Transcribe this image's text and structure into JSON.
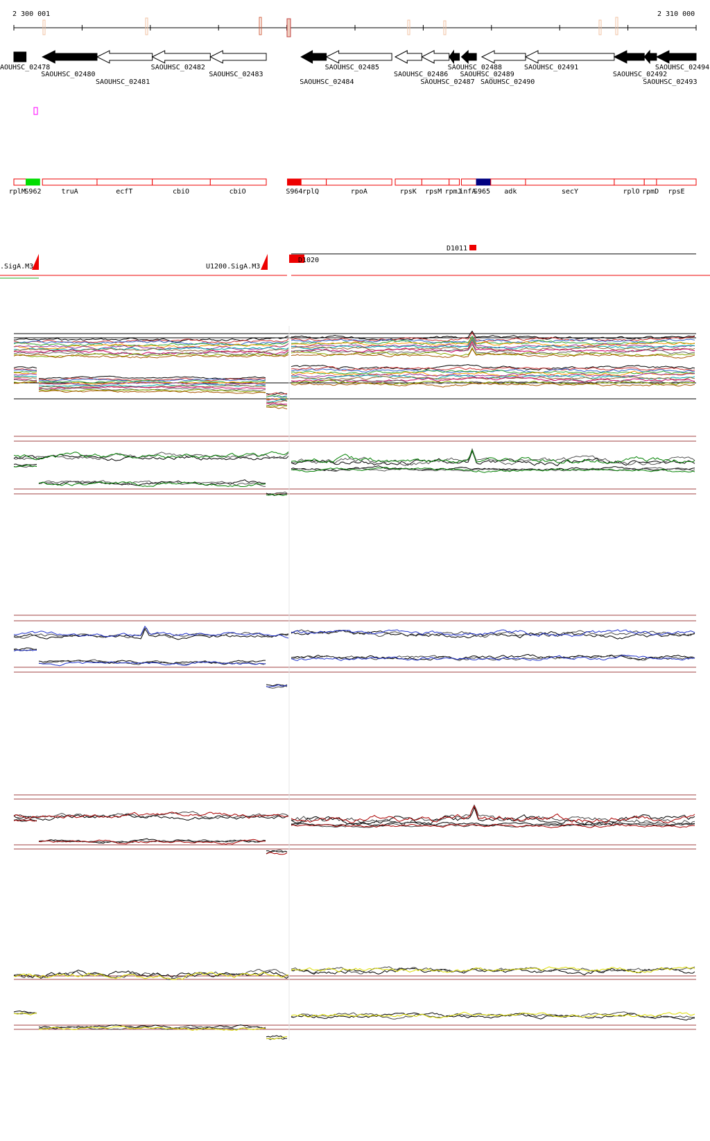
{
  "ruler": {
    "start_label": "2 300 001",
    "end_label": "2 310 000",
    "start_pos": 2300001,
    "end_pos": 2310000
  },
  "genes": [
    {
      "id": "SAOUHSC_02478",
      "label": "AOUHSC_02478",
      "start": 2300001,
      "end": 2300180,
      "strand": "-",
      "filled": true,
      "row": 0
    },
    {
      "id": "SAOUHSC_02480",
      "label": "SAOUHSC_02480",
      "start": 2300420,
      "end": 2301220,
      "strand": "-",
      "filled": true,
      "row": 1
    },
    {
      "id": "SAOUHSC_02481",
      "label": "SAOUHSC_02481",
      "start": 2301220,
      "end": 2302030,
      "strand": "-",
      "filled": false,
      "row": 2
    },
    {
      "id": "SAOUHSC_02482",
      "label": "SAOUHSC_02482",
      "start": 2302030,
      "end": 2302880,
      "strand": "-",
      "filled": false,
      "row": 0
    },
    {
      "id": "SAOUHSC_02483",
      "label": "SAOUHSC_02483",
      "start": 2302880,
      "end": 2303700,
      "strand": "-",
      "filled": false,
      "row": 1
    },
    {
      "id": "SAOUHSC_02484",
      "label": "SAOUHSC_02484",
      "start": 2304210,
      "end": 2304580,
      "strand": "-",
      "filled": true,
      "row": 2
    },
    {
      "id": "SAOUHSC_02485",
      "label": "SAOUHSC_02485",
      "start": 2304580,
      "end": 2305540,
      "strand": "-",
      "filled": false,
      "row": 0
    },
    {
      "id": "SAOUHSC_02486",
      "label": "SAOUHSC_02486",
      "start": 2305590,
      "end": 2305980,
      "strand": "-",
      "filled": false,
      "row": 1
    },
    {
      "id": "SAOUHSC_02487",
      "label": "SAOUHSC_02487",
      "start": 2305980,
      "end": 2306380,
      "strand": "-",
      "filled": false,
      "row": 2
    },
    {
      "id": "SAOUHSC_02488",
      "label": "SAOUHSC_02488",
      "start": 2306380,
      "end": 2306530,
      "strand": "-",
      "filled": true,
      "row": 0
    },
    {
      "id": "SAOUHSC_02489",
      "label": "SAOUHSC_02489",
      "start": 2306560,
      "end": 2306780,
      "strand": "-",
      "filled": true,
      "row": 1
    },
    {
      "id": "SAOUHSC_02490",
      "label": "SAOUHSC_02490",
      "start": 2306860,
      "end": 2307500,
      "strand": "-",
      "filled": false,
      "row": 2
    },
    {
      "id": "SAOUHSC_02491",
      "label": "SAOUHSC_02491",
      "start": 2307500,
      "end": 2308800,
      "strand": "-",
      "filled": false,
      "row": 0
    },
    {
      "id": "SAOUHSC_02492",
      "label": "SAOUHSC_02492",
      "start": 2308800,
      "end": 2309240,
      "strand": "-",
      "filled": true,
      "row": 1
    },
    {
      "id": "SAOUHSC_02493",
      "label": "SAOUHSC_02493",
      "start": 2309240,
      "end": 2309420,
      "strand": "-",
      "filled": true,
      "row": 2
    },
    {
      "id": "SAOUHSC_02494",
      "label": "SAOUHSC_02494",
      "start": 2309420,
      "end": 2310000,
      "strand": "-",
      "filled": true,
      "row": 0
    }
  ],
  "operons": [
    {
      "label": "rplM",
      "start": 2300001,
      "end": 2300180,
      "fill": "",
      "label_pos": 2300050
    },
    {
      "label": "S962",
      "start": 2300180,
      "end": 2300380,
      "fill": "#00dd00",
      "label_pos": 2300280
    },
    {
      "label": "truA",
      "start": 2300420,
      "end": 2301220,
      "fill": "",
      "label_pos": 2300820
    },
    {
      "label": "ecfT",
      "start": 2301220,
      "end": 2302030,
      "fill": "",
      "label_pos": 2301620
    },
    {
      "label": "cbiO",
      "start": 2302030,
      "end": 2302880,
      "fill": "",
      "label_pos": 2302450
    },
    {
      "label": "cbiO",
      "start": 2302880,
      "end": 2303700,
      "fill": "",
      "label_pos": 2303280
    },
    {
      "label": "S964",
      "start": 2304010,
      "end": 2304210,
      "fill": "#ee0000",
      "label_pos": 2304110
    },
    {
      "label": "rplQ",
      "start": 2304210,
      "end": 2304580,
      "fill": "",
      "label_pos": 2304350
    },
    {
      "label": "rpoA",
      "start": 2304580,
      "end": 2305540,
      "fill": "",
      "label_pos": 2305060
    },
    {
      "label": "rpsK",
      "start": 2305590,
      "end": 2305980,
      "fill": "",
      "label_pos": 2305780
    },
    {
      "label": "rpsM",
      "start": 2305980,
      "end": 2306380,
      "fill": "",
      "label_pos": 2306150
    },
    {
      "label": "rpmJ",
      "start": 2306380,
      "end": 2306530,
      "fill": "",
      "label_pos": 2306440
    },
    {
      "label": "infA",
      "start": 2306560,
      "end": 2306780,
      "fill": "",
      "label_pos": 2306650
    },
    {
      "label": "S965",
      "start": 2306780,
      "end": 2306990,
      "fill": "#000080",
      "label_pos": 2306860
    },
    {
      "label": "adk",
      "start": 2306990,
      "end": 2307500,
      "fill": "",
      "label_pos": 2307280
    },
    {
      "label": "secY",
      "start": 2307500,
      "end": 2308800,
      "fill": "",
      "label_pos": 2308150
    },
    {
      "label": "rplO",
      "start": 2308800,
      "end": 2309240,
      "fill": "",
      "label_pos": 2309050
    },
    {
      "label": "rpmD",
      "start": 2309240,
      "end": 2309420,
      "fill": "",
      "label_pos": 2309330
    },
    {
      "label": "rpsE",
      "start": 2309420,
      "end": 2310000,
      "fill": "",
      "label_pos": 2309710
    }
  ],
  "features": {
    "terminator_left_label": ".SigA.M3",
    "terminator_mid_label": "U1200.SigA.M3",
    "d1011_label": "D1011",
    "overlap_label": "D1020"
  },
  "colors": {
    "track_green": "#008000",
    "track_blue": "#2233cc",
    "track_red": "#aa0000",
    "track_yellow": "#dddd00",
    "reference_line": "#a04040"
  }
}
